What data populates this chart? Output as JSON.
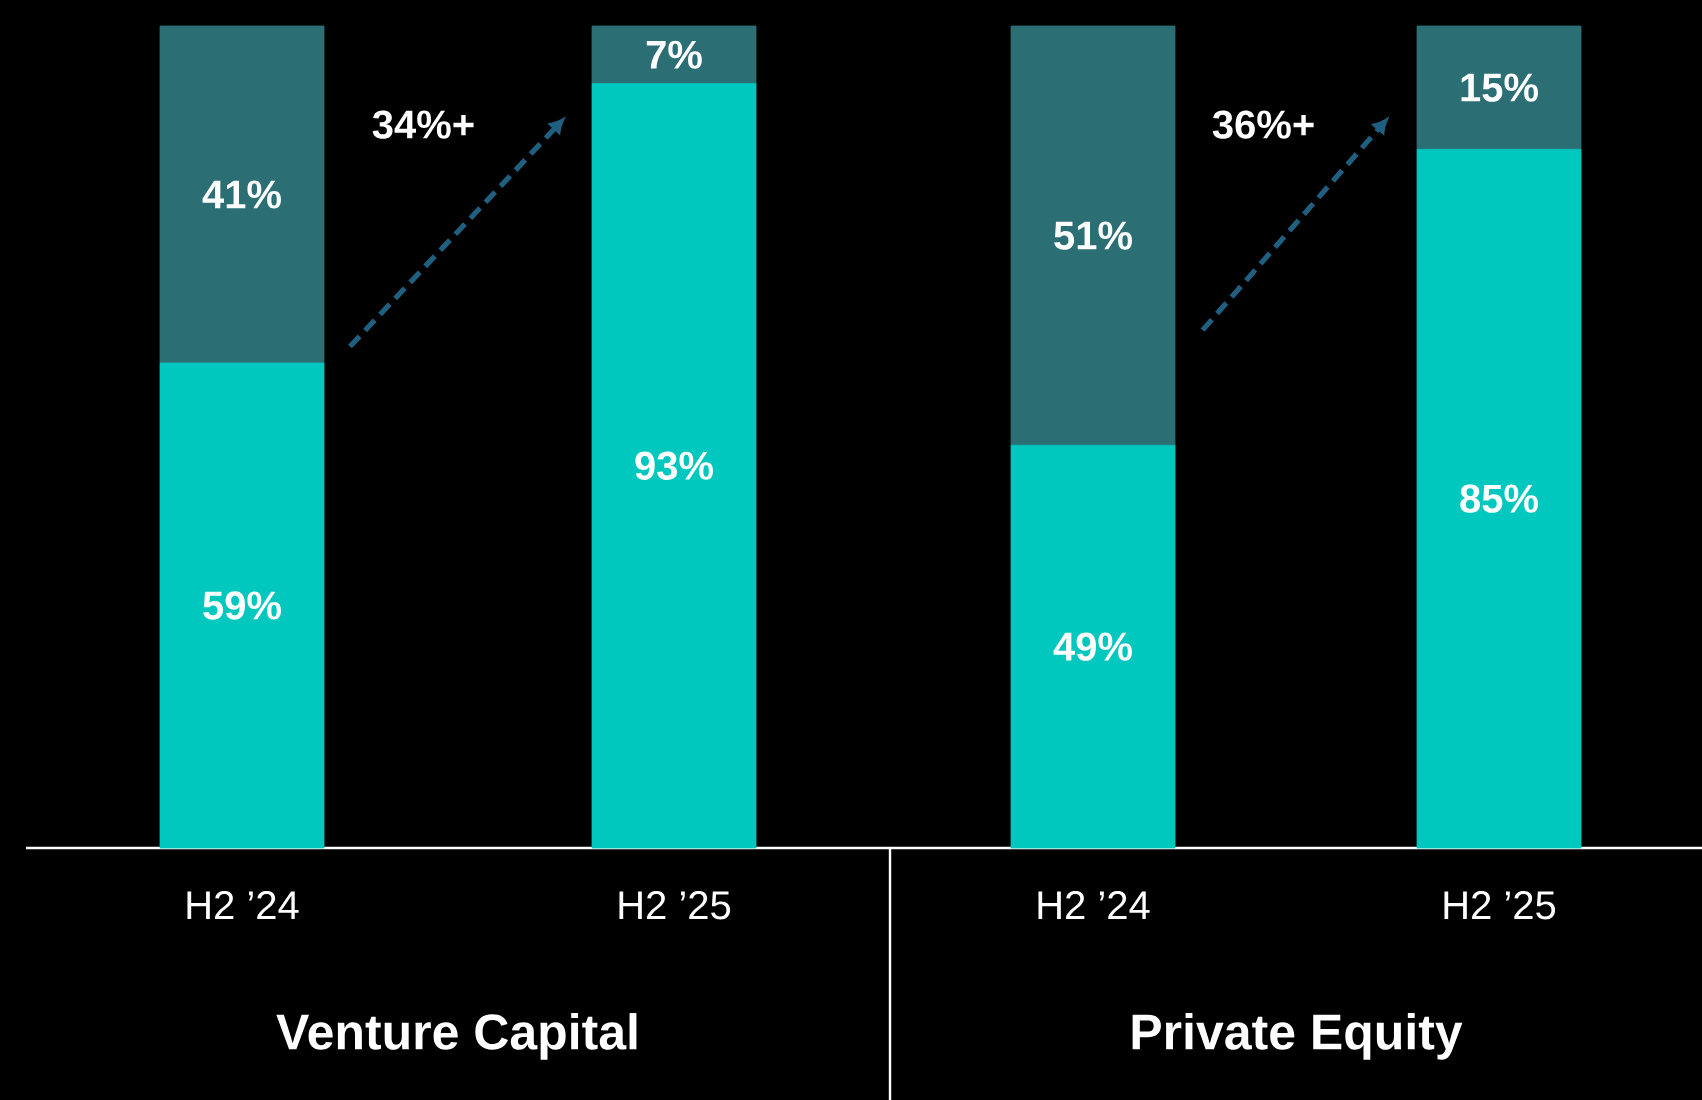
{
  "chart_data": [
    {
      "type": "bar",
      "stacked": true,
      "categories": [
        "H2 ’24",
        "H2 ’25"
      ],
      "xlabel": "Venture Capital",
      "tick_labels": "x",
      "annotations": [
        "34%+"
      ],
      "series": [
        {
          "color": "#00c8be",
          "values": [
            59,
            93
          ],
          "value_labels": [
            "59%",
            "93%"
          ]
        },
        {
          "color": "#2b6e74",
          "values": [
            41,
            7
          ],
          "value_labels": [
            "41%",
            "7%"
          ]
        }
      ]
    },
    {
      "type": "bar",
      "stacked": true,
      "categories": [
        "H2 ’24",
        "H2 ’25"
      ],
      "xlabel": "Private Equity",
      "tick_labels": "x",
      "annotations": [
        "36%+"
      ],
      "series": [
        {
          "color": "#00c8be",
          "values": [
            49,
            85
          ],
          "value_labels": [
            "49%",
            "85%"
          ]
        },
        {
          "color": "#2b6e74",
          "values": [
            51,
            15
          ],
          "value_labels": [
            "51%",
            "15%"
          ]
        }
      ]
    }
  ]
}
